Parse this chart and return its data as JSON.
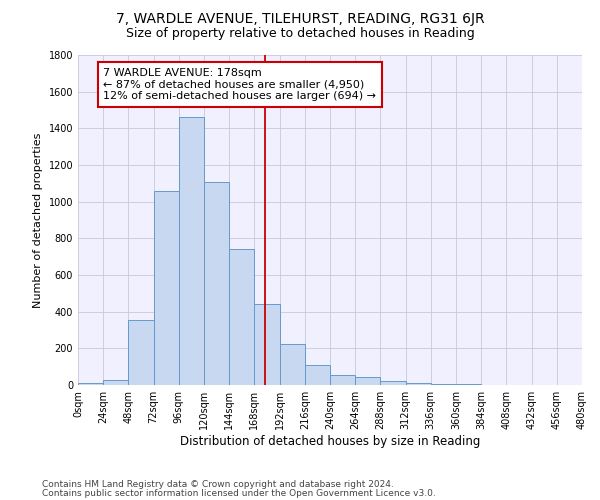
{
  "title1": "7, WARDLE AVENUE, TILEHURST, READING, RG31 6JR",
  "title2": "Size of property relative to detached houses in Reading",
  "xlabel": "Distribution of detached houses by size in Reading",
  "ylabel": "Number of detached properties",
  "bin_edges": [
    0,
    24,
    48,
    72,
    96,
    120,
    144,
    168,
    192,
    216,
    240,
    264,
    288,
    312,
    336,
    360,
    384,
    408,
    432,
    456,
    480
  ],
  "counts": [
    10,
    30,
    355,
    1060,
    1460,
    1110,
    740,
    440,
    225,
    110,
    55,
    45,
    20,
    10,
    5,
    3,
    2,
    1,
    0,
    0
  ],
  "bar_color": "#c8d8f0",
  "bar_edge_color": "#6699cc",
  "reference_line_x": 178,
  "reference_line_color": "#cc0000",
  "annotation_line1": "7 WARDLE AVENUE: 178sqm",
  "annotation_line2": "← 87% of detached houses are smaller (4,950)",
  "annotation_line3": "12% of semi-detached houses are larger (694) →",
  "annotation_box_edgecolor": "#cc0000",
  "ylim": [
    0,
    1800
  ],
  "yticks": [
    0,
    200,
    400,
    600,
    800,
    1000,
    1200,
    1400,
    1600,
    1800
  ],
  "footnote1": "Contains HM Land Registry data © Crown copyright and database right 2024.",
  "footnote2": "Contains public sector information licensed under the Open Government Licence v3.0.",
  "grid_color": "#c8c8dc",
  "background_color": "#f0f0ff",
  "title1_fontsize": 10,
  "title2_fontsize": 9,
  "xlabel_fontsize": 8.5,
  "ylabel_fontsize": 8,
  "tick_fontsize": 7,
  "annotation_fontsize": 8,
  "footnote_fontsize": 6.5
}
